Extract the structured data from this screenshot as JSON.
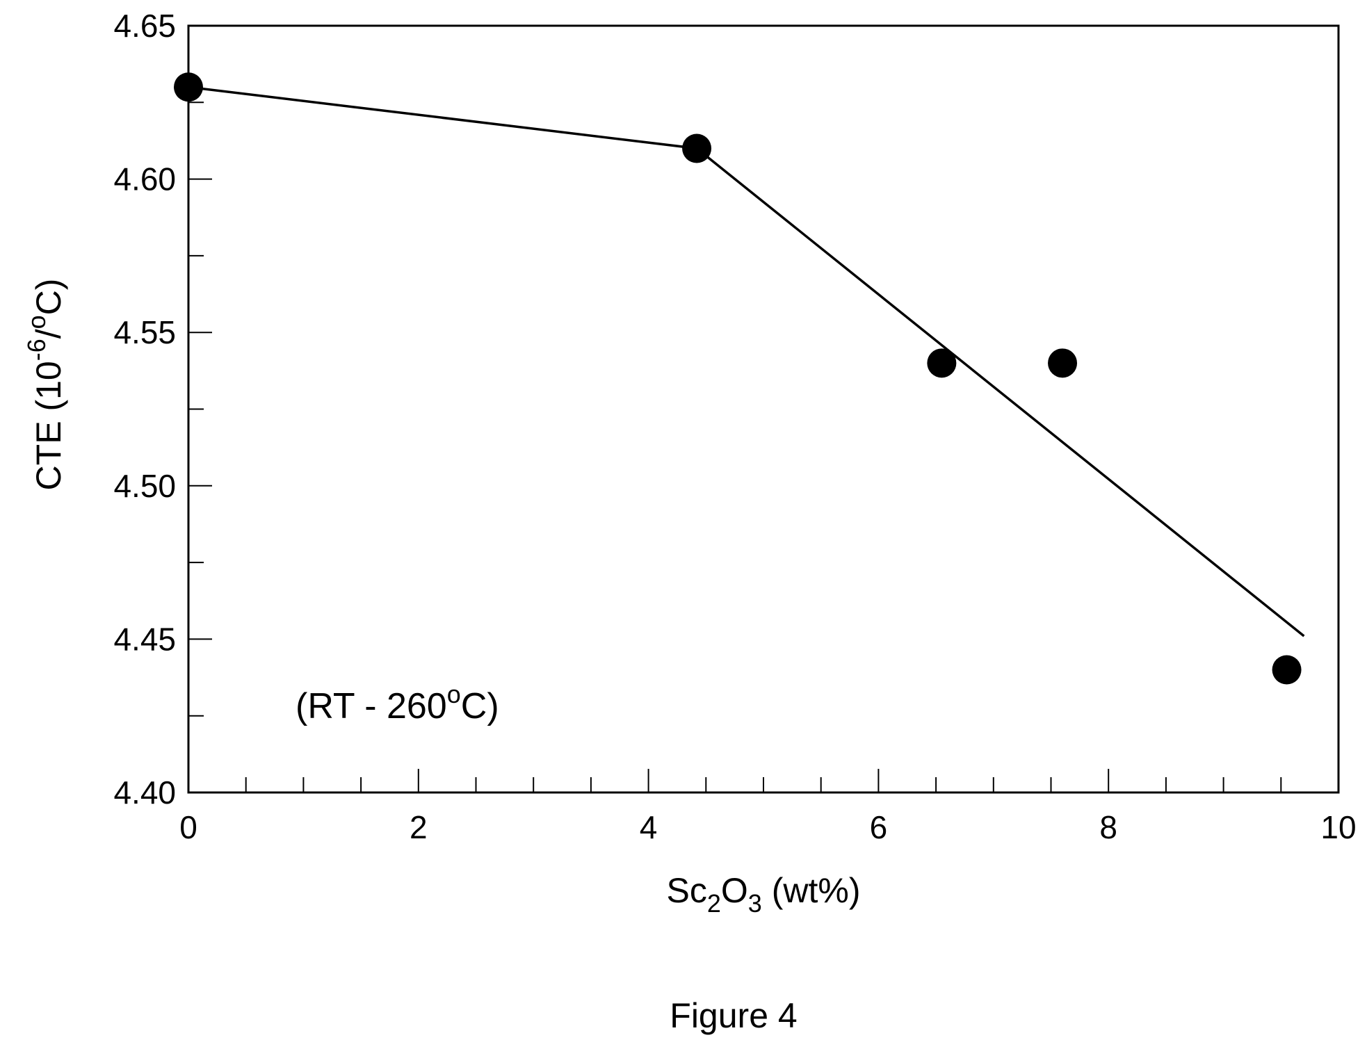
{
  "chart_data": {
    "type": "scatter",
    "x": [
      0,
      4.42,
      6.55,
      7.6,
      9.55
    ],
    "y": [
      4.63,
      4.61,
      4.54,
      4.54,
      4.44
    ],
    "fit_line": {
      "x": [
        0,
        4.42,
        9.7
      ],
      "y": [
        4.63,
        4.61,
        4.451
      ]
    },
    "xlim": [
      0,
      10
    ],
    "ylim": [
      4.4,
      4.65
    ],
    "x_major_ticks": [
      "0",
      "2",
      "4",
      "6",
      "8",
      "10"
    ],
    "y_major_ticks": [
      "4.40",
      "4.45",
      "4.50",
      "4.55",
      "4.60",
      "4.65"
    ],
    "xlabel": {
      "prefix": "Sc",
      "sub1": "2",
      "mid": "O",
      "sub2": "3",
      "suffix": " (wt%)"
    },
    "ylabel": {
      "prefix": "CTE (10",
      "sup1": "-6",
      "mid": "/",
      "sup2": "o",
      "suffix": "C)"
    },
    "annotation": {
      "prefix": "(RT - 260",
      "sup": "o",
      "suffix": "C)"
    },
    "grid": false,
    "marker_color": "#000000",
    "line_color": "#000000"
  },
  "caption": "Figure 4"
}
